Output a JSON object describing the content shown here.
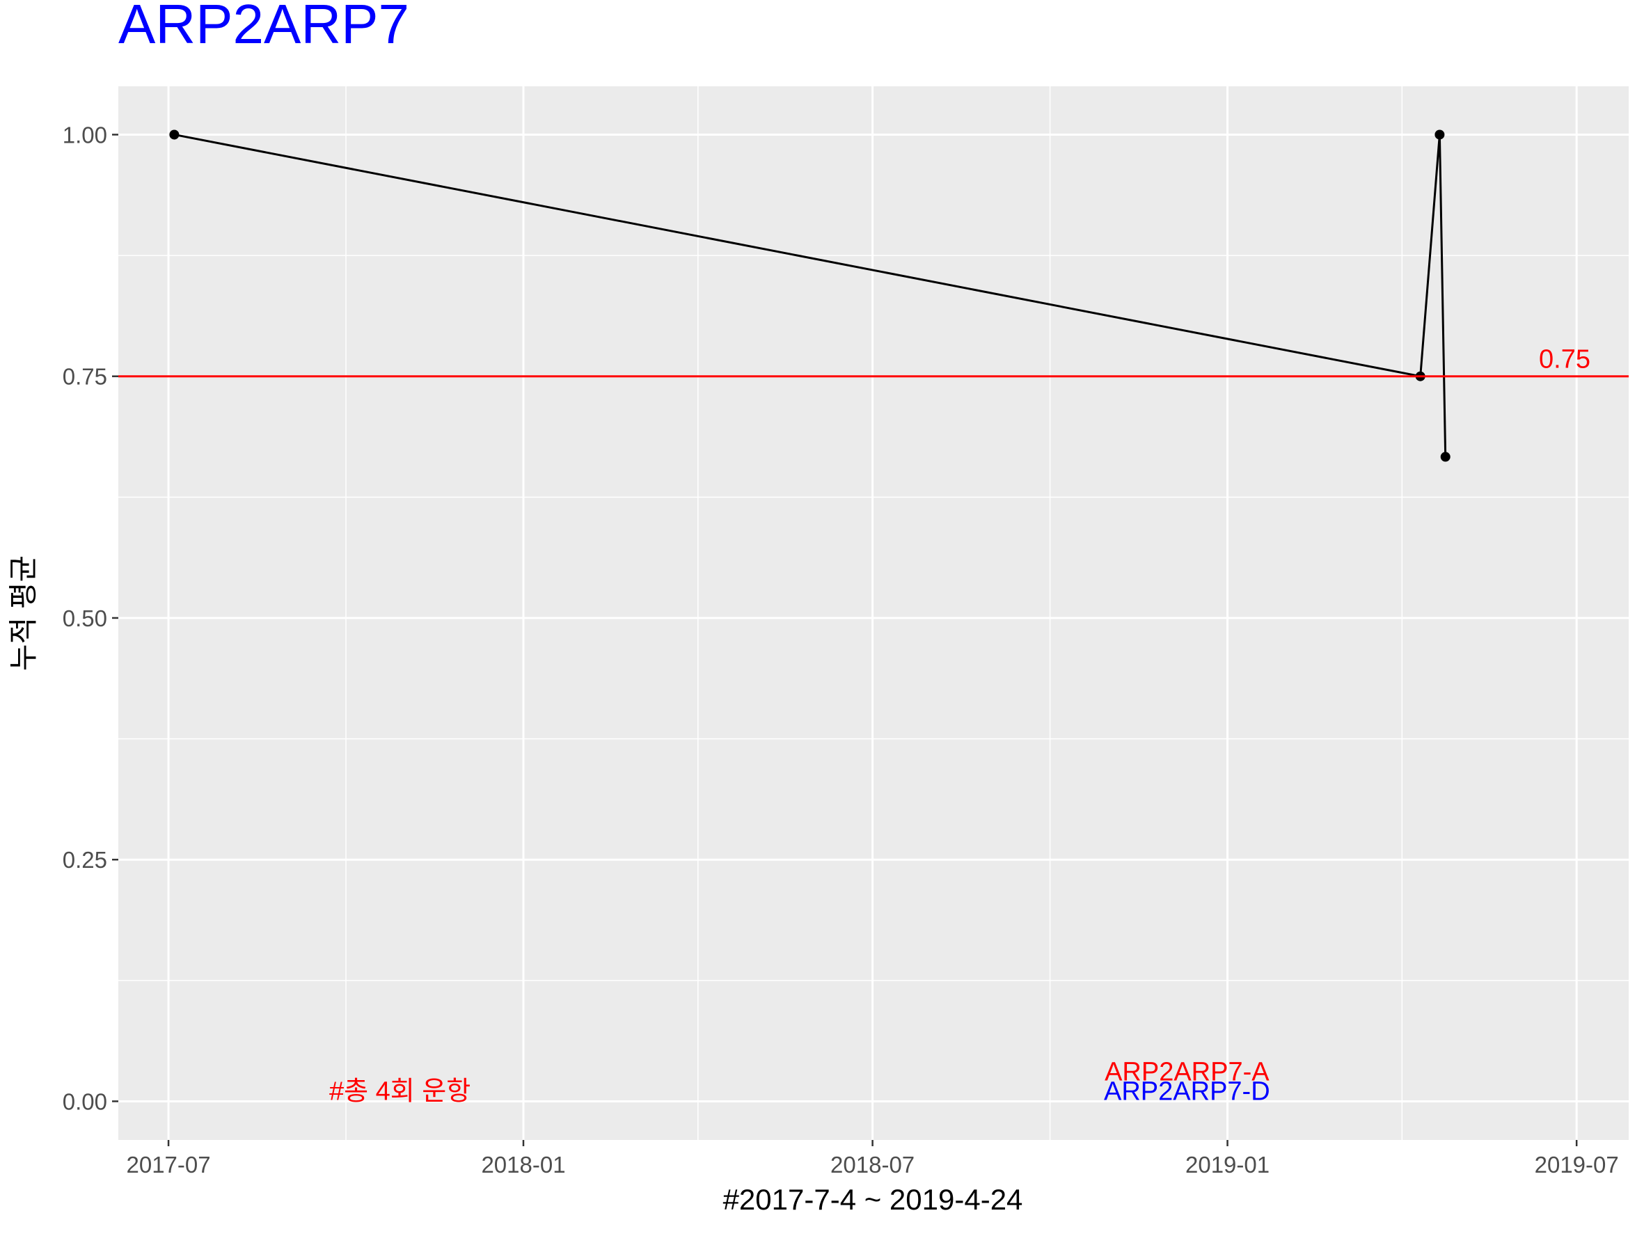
{
  "chart_data": {
    "type": "line",
    "title": "ARP2ARP7",
    "title_color": "#0000FF",
    "xlabel": "#2017-7-4 ~ 2019-4-24",
    "ylabel": "누적 평균",
    "x_ticks": [
      "2017-07",
      "2018-01",
      "2018-07",
      "2019-01",
      "2019-07"
    ],
    "y_ticks": [
      "0.00",
      "0.25",
      "0.50",
      "0.75",
      "1.00"
    ],
    "xlim": [
      "2017-06-05",
      "2019-07-28"
    ],
    "ylim": [
      -0.04,
      1.05
    ],
    "grid": true,
    "background": "#EBEBEB",
    "series": [
      {
        "color": "#000000",
        "points": [
          {
            "x": "2017-07-04",
            "y": 1.0
          },
          {
            "x": "2019-04-11",
            "y": 0.75
          },
          {
            "x": "2019-04-21",
            "y": 1.0
          },
          {
            "x": "2019-04-24",
            "y": 0.6667
          }
        ]
      }
    ],
    "hline": {
      "y": 0.75,
      "color": "#FF0000",
      "label": "0.75"
    },
    "annotations": [
      {
        "text": "#총 4회 운항",
        "color": "#FF0000",
        "x": "2017-10-29",
        "y": 0.0
      },
      {
        "text": "ARP2ARP7-A",
        "color": "#FF0000",
        "x": "2018-12-11",
        "y": 0.02
      },
      {
        "text": "ARP2ARP7-D",
        "color": "#0000FF",
        "x": "2018-12-11",
        "y": 0.0
      }
    ]
  }
}
